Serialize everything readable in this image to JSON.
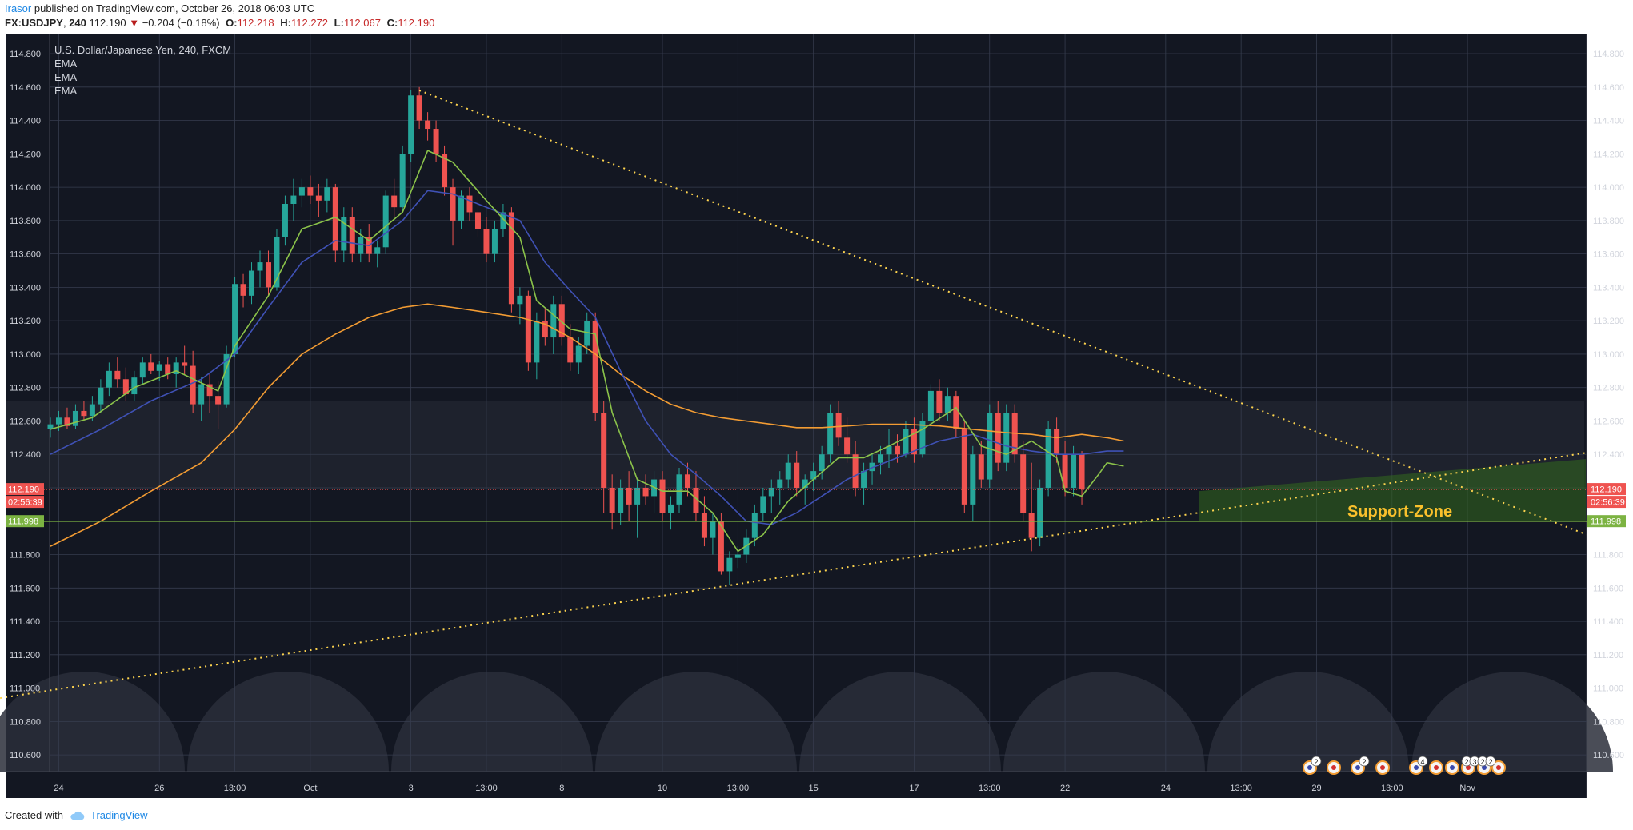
{
  "header": {
    "author": "Irasor",
    "published_text": "published on TradingView.com, October 26, 2018 06:03 UTC",
    "symbol": "FX:USDJPY",
    "interval": "240",
    "last": "112.190",
    "change_arrow": "▼",
    "change": "−0.204 (−0.18%)",
    "o_label": "O:",
    "o": "112.218",
    "h_label": "H:",
    "h": "112.272",
    "l_label": "L:",
    "l": "112.067",
    "c_label": "C:",
    "c": "112.190"
  },
  "legend": {
    "title": "U.S. Dollar/Japanese Yen, 240, FXCM",
    "indicators": [
      "EMA",
      "EMA",
      "EMA"
    ]
  },
  "footer": {
    "created_with": "Created with",
    "brand": "TradingView"
  },
  "colors": {
    "background": "#131722",
    "grid": "#363c4e",
    "up": "#26a69a",
    "down": "#ef5350",
    "ema_fast": "#8bc34a",
    "ema_mid": "#3f51b5",
    "ema_slow": "#f39c33",
    "trendline": "#ffd54f",
    "support_line": "#7cb342",
    "support_zone": "#33691e",
    "support_text": "#f9c02c",
    "axis_text": "#d1d4dc"
  },
  "chart_data": {
    "type": "candlestick",
    "y_axis": {
      "range": [
        110.5,
        114.92
      ],
      "ticks": [
        "110.600",
        "110.800",
        "111.000",
        "111.200",
        "111.400",
        "111.600",
        "111.800",
        "112.000",
        "112.200",
        "112.400",
        "112.600",
        "112.800",
        "113.000",
        "113.200",
        "113.400",
        "113.600",
        "113.800",
        "114.000",
        "114.200",
        "114.400",
        "114.600",
        "114.800"
      ],
      "labels": [
        "110.600",
        "110.800",
        "111.000",
        "111.200",
        "111.400",
        "111.600",
        "111.800",
        "",
        "",
        "112.400",
        "112.600",
        "112.800",
        "113.000",
        "113.200",
        "113.400",
        "113.600",
        "113.800",
        "114.000",
        "114.200",
        "114.400",
        "114.600",
        "114.800"
      ]
    },
    "x_axis": {
      "ticks": [
        {
          "label": "24",
          "bar": 1
        },
        {
          "label": "26",
          "bar": 13
        },
        {
          "label": "13:00",
          "bar": 22
        },
        {
          "label": "Oct",
          "bar": 31
        },
        {
          "label": "3",
          "bar": 43
        },
        {
          "label": "13:00",
          "bar": 52
        },
        {
          "label": "8",
          "bar": 61
        },
        {
          "label": "10",
          "bar": 73
        },
        {
          "label": "13:00",
          "bar": 82
        },
        {
          "label": "15",
          "bar": 91
        },
        {
          "label": "17",
          "bar": 103
        },
        {
          "label": "13:00",
          "bar": 112
        },
        {
          "label": "22",
          "bar": 121
        },
        {
          "label": "24",
          "bar": 133
        },
        {
          "label": "13:00",
          "bar": 142
        },
        {
          "label": "29",
          "bar": 151
        },
        {
          "label": "13:00",
          "bar": 160
        },
        {
          "label": "Nov",
          "bar": 169
        }
      ],
      "total_bars": 181
    },
    "candles": [
      [
        112.55,
        112.62,
        112.5,
        112.58
      ],
      [
        112.58,
        112.66,
        112.54,
        112.62
      ],
      [
        112.62,
        112.68,
        112.55,
        112.57
      ],
      [
        112.57,
        112.7,
        112.55,
        112.66
      ],
      [
        112.66,
        112.72,
        112.6,
        112.63
      ],
      [
        112.63,
        112.75,
        112.6,
        112.7
      ],
      [
        112.7,
        112.85,
        112.65,
        112.8
      ],
      [
        112.8,
        112.95,
        112.75,
        112.9
      ],
      [
        112.9,
        112.98,
        112.8,
        112.85
      ],
      [
        112.85,
        112.92,
        112.72,
        112.76
      ],
      [
        112.76,
        112.9,
        112.72,
        112.86
      ],
      [
        112.86,
        112.98,
        112.82,
        112.95
      ],
      [
        112.95,
        113.0,
        112.88,
        112.9
      ],
      [
        112.9,
        112.96,
        112.84,
        112.94
      ],
      [
        112.94,
        112.98,
        112.85,
        112.88
      ],
      [
        112.88,
        112.98,
        112.8,
        112.95
      ],
      [
        112.95,
        113.05,
        112.88,
        112.93
      ],
      [
        112.93,
        113.02,
        112.65,
        112.7
      ],
      [
        112.7,
        112.86,
        112.6,
        112.82
      ],
      [
        112.82,
        112.88,
        112.65,
        112.75
      ],
      [
        112.75,
        112.84,
        112.55,
        112.7
      ],
      [
        112.7,
        113.05,
        112.68,
        113.0
      ],
      [
        113.0,
        113.46,
        112.98,
        113.42
      ],
      [
        113.42,
        113.48,
        113.28,
        113.35
      ],
      [
        113.35,
        113.55,
        113.3,
        113.5
      ],
      [
        113.5,
        113.62,
        113.4,
        113.55
      ],
      [
        113.55,
        113.62,
        113.35,
        113.4
      ],
      [
        113.4,
        113.75,
        113.38,
        113.7
      ],
      [
        113.7,
        113.95,
        113.65,
        113.9
      ],
      [
        113.9,
        114.05,
        113.8,
        113.95
      ],
      [
        113.95,
        114.05,
        113.88,
        114.0
      ],
      [
        114.0,
        114.07,
        113.9,
        113.95
      ],
      [
        113.95,
        114.02,
        113.82,
        113.92
      ],
      [
        113.92,
        114.05,
        113.85,
        114.0
      ],
      [
        114.0,
        114.02,
        113.55,
        113.62
      ],
      [
        113.62,
        113.88,
        113.55,
        113.82
      ],
      [
        113.82,
        113.88,
        113.55,
        113.6
      ],
      [
        113.6,
        113.75,
        113.55,
        113.7
      ],
      [
        113.7,
        113.78,
        113.55,
        113.6
      ],
      [
        113.6,
        113.68,
        113.52,
        113.64
      ],
      [
        113.64,
        113.98,
        113.6,
        113.95
      ],
      [
        113.95,
        114.05,
        113.82,
        113.88
      ],
      [
        113.88,
        114.25,
        113.85,
        114.2
      ],
      [
        114.2,
        114.58,
        114.15,
        114.55
      ],
      [
        114.55,
        114.6,
        114.35,
        114.4
      ],
      [
        114.4,
        114.45,
        114.28,
        114.35
      ],
      [
        114.35,
        114.4,
        114.15,
        114.2
      ],
      [
        114.2,
        114.25,
        113.95,
        114.0
      ],
      [
        114.0,
        114.05,
        113.65,
        113.8
      ],
      [
        113.8,
        113.98,
        113.75,
        113.95
      ],
      [
        113.95,
        114.0,
        113.8,
        113.85
      ],
      [
        113.85,
        113.95,
        113.7,
        113.75
      ],
      [
        113.75,
        113.82,
        113.55,
        113.6
      ],
      [
        113.6,
        113.8,
        113.55,
        113.75
      ],
      [
        113.75,
        113.9,
        113.7,
        113.85
      ],
      [
        113.85,
        113.88,
        113.25,
        113.3
      ],
      [
        113.3,
        113.4,
        113.18,
        113.35
      ],
      [
        113.35,
        113.38,
        112.9,
        112.95
      ],
      [
        112.95,
        113.25,
        112.85,
        113.2
      ],
      [
        113.2,
        113.28,
        113.05,
        113.1
      ],
      [
        113.1,
        113.35,
        113.0,
        113.3
      ],
      [
        113.3,
        113.35,
        113.05,
        113.1
      ],
      [
        113.1,
        113.18,
        112.9,
        112.95
      ],
      [
        112.95,
        113.1,
        112.88,
        113.05
      ],
      [
        113.05,
        113.25,
        113.0,
        113.2
      ],
      [
        113.2,
        113.25,
        112.6,
        112.65
      ],
      [
        112.65,
        112.72,
        112.05,
        112.2
      ],
      [
        112.2,
        112.28,
        111.95,
        112.05
      ],
      [
        112.05,
        112.25,
        111.98,
        112.2
      ],
      [
        112.2,
        112.3,
        112.0,
        112.1
      ],
      [
        112.1,
        112.25,
        111.9,
        112.2
      ],
      [
        112.2,
        112.28,
        112.1,
        112.15
      ],
      [
        112.15,
        112.3,
        112.05,
        112.25
      ],
      [
        112.25,
        112.3,
        112.0,
        112.05
      ],
      [
        112.05,
        112.15,
        111.95,
        112.1
      ],
      [
        112.1,
        112.32,
        112.05,
        112.28
      ],
      [
        112.28,
        112.35,
        112.15,
        112.2
      ],
      [
        112.2,
        112.3,
        112.0,
        112.05
      ],
      [
        112.05,
        112.15,
        111.85,
        111.9
      ],
      [
        111.9,
        112.05,
        111.8,
        112.0
      ],
      [
        112.0,
        112.05,
        111.68,
        111.7
      ],
      [
        111.7,
        111.82,
        111.62,
        111.78
      ],
      [
        111.78,
        111.85,
        111.72,
        111.8
      ],
      [
        111.8,
        111.95,
        111.75,
        111.9
      ],
      [
        111.9,
        112.1,
        111.85,
        112.05
      ],
      [
        112.05,
        112.2,
        112.0,
        112.15
      ],
      [
        112.15,
        112.25,
        112.05,
        112.2
      ],
      [
        112.2,
        112.3,
        112.1,
        112.25
      ],
      [
        112.25,
        112.4,
        112.2,
        112.35
      ],
      [
        112.35,
        112.42,
        112.15,
        112.2
      ],
      [
        112.2,
        112.28,
        112.1,
        112.25
      ],
      [
        112.25,
        112.35,
        112.18,
        112.3
      ],
      [
        112.3,
        112.45,
        112.25,
        112.4
      ],
      [
        112.4,
        112.7,
        112.35,
        112.65
      ],
      [
        112.65,
        112.72,
        112.45,
        112.5
      ],
      [
        112.5,
        112.62,
        112.35,
        112.4
      ],
      [
        112.4,
        112.48,
        112.15,
        112.2
      ],
      [
        112.2,
        112.35,
        112.1,
        112.3
      ],
      [
        112.3,
        112.4,
        112.22,
        112.35
      ],
      [
        112.35,
        112.45,
        112.28,
        112.4
      ],
      [
        112.4,
        112.55,
        112.32,
        112.45
      ],
      [
        112.45,
        112.52,
        112.35,
        112.4
      ],
      [
        112.4,
        112.6,
        112.38,
        112.55
      ],
      [
        112.55,
        112.62,
        112.35,
        112.4
      ],
      [
        112.4,
        112.65,
        112.38,
        112.6
      ],
      [
        112.6,
        112.82,
        112.55,
        112.78
      ],
      [
        112.78,
        112.85,
        112.6,
        112.65
      ],
      [
        112.65,
        112.8,
        112.6,
        112.75
      ],
      [
        112.75,
        112.78,
        112.5,
        112.55
      ],
      [
        112.55,
        112.6,
        112.05,
        112.1
      ],
      [
        112.1,
        112.45,
        112.0,
        112.4
      ],
      [
        112.4,
        112.48,
        112.2,
        112.25
      ],
      [
        112.25,
        112.7,
        112.2,
        112.65
      ],
      [
        112.65,
        112.72,
        112.3,
        112.35
      ],
      [
        112.35,
        112.7,
        112.3,
        112.65
      ],
      [
        112.65,
        112.7,
        112.35,
        112.4
      ],
      [
        112.4,
        112.48,
        112.0,
        112.05
      ],
      [
        112.05,
        112.35,
        111.82,
        111.9
      ],
      [
        111.9,
        112.25,
        111.85,
        112.2
      ],
      [
        112.2,
        112.6,
        112.15,
        112.55
      ],
      [
        112.55,
        112.62,
        112.35,
        112.4
      ],
      [
        112.4,
        112.48,
        112.15,
        112.2
      ],
      [
        112.2,
        112.45,
        112.15,
        112.4
      ],
      [
        112.4,
        112.42,
        112.1,
        112.19
      ]
    ],
    "ema_fast": [
      [
        0,
        112.55
      ],
      [
        5,
        112.62
      ],
      [
        10,
        112.8
      ],
      [
        15,
        112.9
      ],
      [
        20,
        112.78
      ],
      [
        22,
        113.05
      ],
      [
        26,
        113.35
      ],
      [
        30,
        113.75
      ],
      [
        34,
        113.82
      ],
      [
        38,
        113.68
      ],
      [
        42,
        113.85
      ],
      [
        45,
        114.22
      ],
      [
        48,
        114.15
      ],
      [
        52,
        113.92
      ],
      [
        56,
        113.7
      ],
      [
        58,
        113.32
      ],
      [
        62,
        113.15
      ],
      [
        65,
        113.12
      ],
      [
        67,
        112.65
      ],
      [
        70,
        112.25
      ],
      [
        73,
        112.18
      ],
      [
        76,
        112.18
      ],
      [
        79,
        112.05
      ],
      [
        82,
        111.82
      ],
      [
        85,
        111.92
      ],
      [
        88,
        112.12
      ],
      [
        91,
        112.25
      ],
      [
        94,
        112.38
      ],
      [
        97,
        112.38
      ],
      [
        100,
        112.45
      ],
      [
        104,
        112.55
      ],
      [
        108,
        112.68
      ],
      [
        111,
        112.45
      ],
      [
        114,
        112.4
      ],
      [
        117,
        112.48
      ],
      [
        120,
        112.38
      ],
      [
        121,
        112.18
      ],
      [
        123,
        112.15
      ],
      [
        125,
        112.28
      ],
      [
        126,
        112.35
      ],
      [
        128,
        112.33
      ]
    ],
    "ema_mid": [
      [
        0,
        112.4
      ],
      [
        6,
        112.55
      ],
      [
        12,
        112.72
      ],
      [
        18,
        112.85
      ],
      [
        22,
        113.0
      ],
      [
        26,
        113.28
      ],
      [
        30,
        113.55
      ],
      [
        34,
        113.68
      ],
      [
        38,
        113.65
      ],
      [
        42,
        113.8
      ],
      [
        45,
        113.98
      ],
      [
        48,
        113.96
      ],
      [
        52,
        113.88
      ],
      [
        56,
        113.8
      ],
      [
        59,
        113.55
      ],
      [
        62,
        113.38
      ],
      [
        65,
        113.22
      ],
      [
        68,
        112.9
      ],
      [
        71,
        112.6
      ],
      [
        74,
        112.4
      ],
      [
        77,
        112.28
      ],
      [
        80,
        112.15
      ],
      [
        83,
        112.0
      ],
      [
        86,
        111.98
      ],
      [
        89,
        112.05
      ],
      [
        92,
        112.15
      ],
      [
        95,
        112.25
      ],
      [
        98,
        112.32
      ],
      [
        102,
        112.4
      ],
      [
        106,
        112.48
      ],
      [
        110,
        112.52
      ],
      [
        114,
        112.45
      ],
      [
        117,
        112.42
      ],
      [
        120,
        112.4
      ],
      [
        123,
        112.4
      ],
      [
        126,
        112.42
      ],
      [
        128,
        112.42
      ]
    ],
    "ema_slow": [
      [
        0,
        111.85
      ],
      [
        6,
        112.0
      ],
      [
        12,
        112.18
      ],
      [
        18,
        112.35
      ],
      [
        22,
        112.55
      ],
      [
        26,
        112.8
      ],
      [
        30,
        113.0
      ],
      [
        34,
        113.12
      ],
      [
        38,
        113.22
      ],
      [
        42,
        113.28
      ],
      [
        45,
        113.3
      ],
      [
        48,
        113.28
      ],
      [
        52,
        113.25
      ],
      [
        56,
        113.22
      ],
      [
        59,
        113.18
      ],
      [
        62,
        113.1
      ],
      [
        65,
        113.0
      ],
      [
        68,
        112.88
      ],
      [
        71,
        112.78
      ],
      [
        74,
        112.7
      ],
      [
        77,
        112.65
      ],
      [
        80,
        112.62
      ],
      [
        83,
        112.6
      ],
      [
        86,
        112.58
      ],
      [
        89,
        112.56
      ],
      [
        92,
        112.56
      ],
      [
        95,
        112.57
      ],
      [
        98,
        112.58
      ],
      [
        102,
        112.58
      ],
      [
        106,
        112.57
      ],
      [
        110,
        112.55
      ],
      [
        114,
        112.53
      ],
      [
        117,
        112.52
      ],
      [
        120,
        112.5
      ],
      [
        123,
        112.52
      ],
      [
        126,
        112.5
      ],
      [
        128,
        112.48
      ]
    ],
    "trendlines": [
      {
        "from": [
          44,
          114.58
        ],
        "to": [
          193,
          111.92
        ]
      },
      {
        "from": [
          -6,
          110.94
        ],
        "to": [
          193,
          112.41
        ]
      }
    ],
    "support_zone": {
      "from_bar": 137,
      "to_bar": 189,
      "y_range": [
        112.0,
        112.18
      ],
      "label": "Support-Zone"
    },
    "horizontal_lines": [
      {
        "price": 112.19,
        "style": "dotted",
        "color": "#ef5350"
      },
      {
        "price": 111.998,
        "style": "solid",
        "color": "#7cb342"
      }
    ],
    "right_price_labels": [
      "112.190",
      "02:56:39",
      "111.998"
    ],
    "left_price_labels": [
      "112.190",
      "02:56:39",
      "111.998"
    ],
    "event_badges": [
      "2",
      "2",
      "4",
      "2",
      "3",
      "2",
      "2"
    ]
  }
}
